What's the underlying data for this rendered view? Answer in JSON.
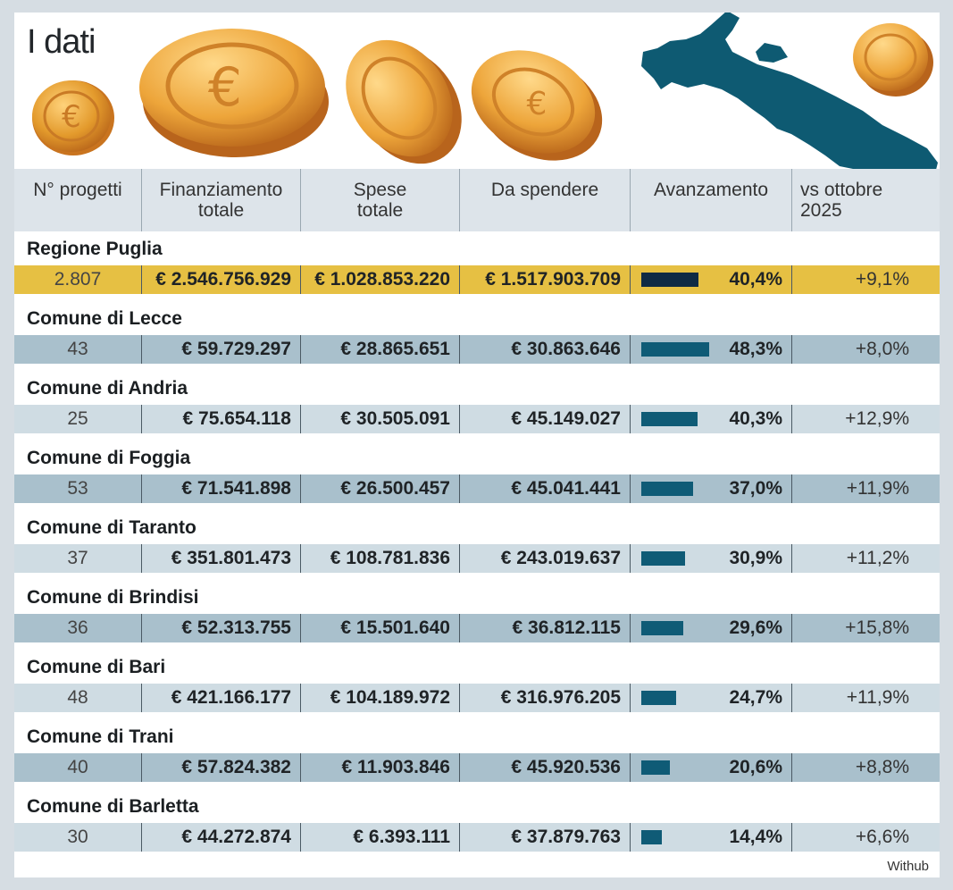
{
  "title": "I dati",
  "columns": [
    "N° progetti",
    "Finanziamento",
    "totale",
    "Spese",
    "totale",
    "Da spendere",
    "Avanzamento",
    "vs ottobre",
    "2025"
  ],
  "source": "Withub",
  "colors": {
    "highlight_row": "#e6c043",
    "highlight_bar": "#0f2a44",
    "row_dark": "#a9c0cc",
    "row_light": "#cfdce3",
    "bar": "#0f5b76"
  },
  "chart_data": {
    "type": "table",
    "title": "I dati",
    "columns": [
      "N° progetti",
      "Finanziamento totale",
      "Spese totale",
      "Da spendere",
      "Avanzamento",
      "vs ottobre 2025"
    ],
    "rows": [
      {
        "name": "Regione Puglia",
        "progetti": "2.807",
        "finanziamento": "€ 2.546.756.929",
        "spese": "€ 1.028.853.220",
        "da_spendere": "€ 1.517.903.709",
        "avanzamento": 40.4,
        "avanzamento_label": "40,4%",
        "delta": "+9,1%",
        "style": "highlight"
      },
      {
        "name": "Comune di Lecce",
        "progetti": "43",
        "finanziamento": "€ 59.729.297",
        "spese": "€ 28.865.651",
        "da_spendere": "€ 30.863.646",
        "avanzamento": 48.3,
        "avanzamento_label": "48,3%",
        "delta": "+8,0%",
        "style": "dark"
      },
      {
        "name": "Comune di Andria",
        "progetti": "25",
        "finanziamento": "€ 75.654.118",
        "spese": "€ 30.505.091",
        "da_spendere": "€ 45.149.027",
        "avanzamento": 40.3,
        "avanzamento_label": "40,3%",
        "delta": "+12,9%",
        "style": "light"
      },
      {
        "name": "Comune di Foggia",
        "progetti": "53",
        "finanziamento": "€ 71.541.898",
        "spese": "€ 26.500.457",
        "da_spendere": "€ 45.041.441",
        "avanzamento": 37.0,
        "avanzamento_label": "37,0%",
        "delta": "+11,9%",
        "style": "dark"
      },
      {
        "name": "Comune di Taranto",
        "progetti": "37",
        "finanziamento": "€ 351.801.473",
        "spese": "€ 108.781.836",
        "da_spendere": "€ 243.019.637",
        "avanzamento": 30.9,
        "avanzamento_label": "30,9%",
        "delta": "+11,2%",
        "style": "light"
      },
      {
        "name": "Comune di Brindisi",
        "progetti": "36",
        "finanziamento": "€ 52.313.755",
        "spese": "€ 15.501.640",
        "da_spendere": "€ 36.812.115",
        "avanzamento": 29.6,
        "avanzamento_label": "29,6%",
        "delta": "+15,8%",
        "style": "dark"
      },
      {
        "name": "Comune di Bari",
        "progetti": "48",
        "finanziamento": "€ 421.166.177",
        "spese": "€ 104.189.972",
        "da_spendere": "€ 316.976.205",
        "avanzamento": 24.7,
        "avanzamento_label": "24,7%",
        "delta": "+11,9%",
        "style": "light"
      },
      {
        "name": "Comune di Trani",
        "progetti": "40",
        "finanziamento": "€ 57.824.382",
        "spese": "€ 11.903.846",
        "da_spendere": "€ 45.920.536",
        "avanzamento": 20.6,
        "avanzamento_label": "20,6%",
        "delta": "+8,8%",
        "style": "dark"
      },
      {
        "name": "Comune di Barletta",
        "progetti": "30",
        "finanziamento": "€ 44.272.874",
        "spese": "€ 6.393.111",
        "da_spendere": "€ 37.879.763",
        "avanzamento": 14.4,
        "avanzamento_label": "14,4%",
        "delta": "+6,6%",
        "style": "light"
      }
    ]
  }
}
